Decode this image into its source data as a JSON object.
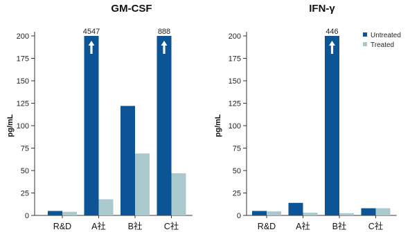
{
  "figure": {
    "colors": {
      "untreated": "#0c5496",
      "treated": "#a9c9cc",
      "axis": "#333333",
      "arrow": "#ffffff"
    },
    "legend": {
      "placement": "top-right",
      "entries": [
        "Untreated",
        "Treated"
      ]
    }
  },
  "chart_data": [
    {
      "type": "bar",
      "title": "GM-CSF",
      "xlabel": "",
      "ylabel": "pg/mL",
      "ylim": [
        0,
        200
      ],
      "yticks": [
        0,
        25,
        50,
        75,
        100,
        125,
        150,
        175,
        200
      ],
      "grid": false,
      "categories": [
        "R&D",
        "A社",
        "B社",
        "C社"
      ],
      "series": [
        {
          "name": "Untreated",
          "values": [
            5,
            200,
            122,
            200
          ]
        },
        {
          "name": "Treated",
          "values": [
            4,
            18,
            69,
            47
          ]
        }
      ],
      "annotations": [
        {
          "category": "A社",
          "series": "Untreated",
          "text": "4547",
          "off_scale": true
        },
        {
          "category": "C社",
          "series": "Untreated",
          "text": "888",
          "off_scale": true
        }
      ]
    },
    {
      "type": "bar",
      "title": "IFN-γ",
      "xlabel": "",
      "ylabel": "pg/mL",
      "ylim": [
        0,
        200
      ],
      "yticks": [
        0,
        25,
        50,
        75,
        100,
        125,
        150,
        175,
        200
      ],
      "grid": false,
      "categories": [
        "R&D",
        "A社",
        "B社",
        "C社"
      ],
      "series": [
        {
          "name": "Untreated",
          "values": [
            5,
            14,
            200,
            8
          ]
        },
        {
          "name": "Treated",
          "values": [
            4.5,
            3,
            2.5,
            8
          ]
        }
      ],
      "annotations": [
        {
          "category": "B社",
          "series": "Untreated",
          "text": "446",
          "off_scale": true
        }
      ]
    }
  ]
}
